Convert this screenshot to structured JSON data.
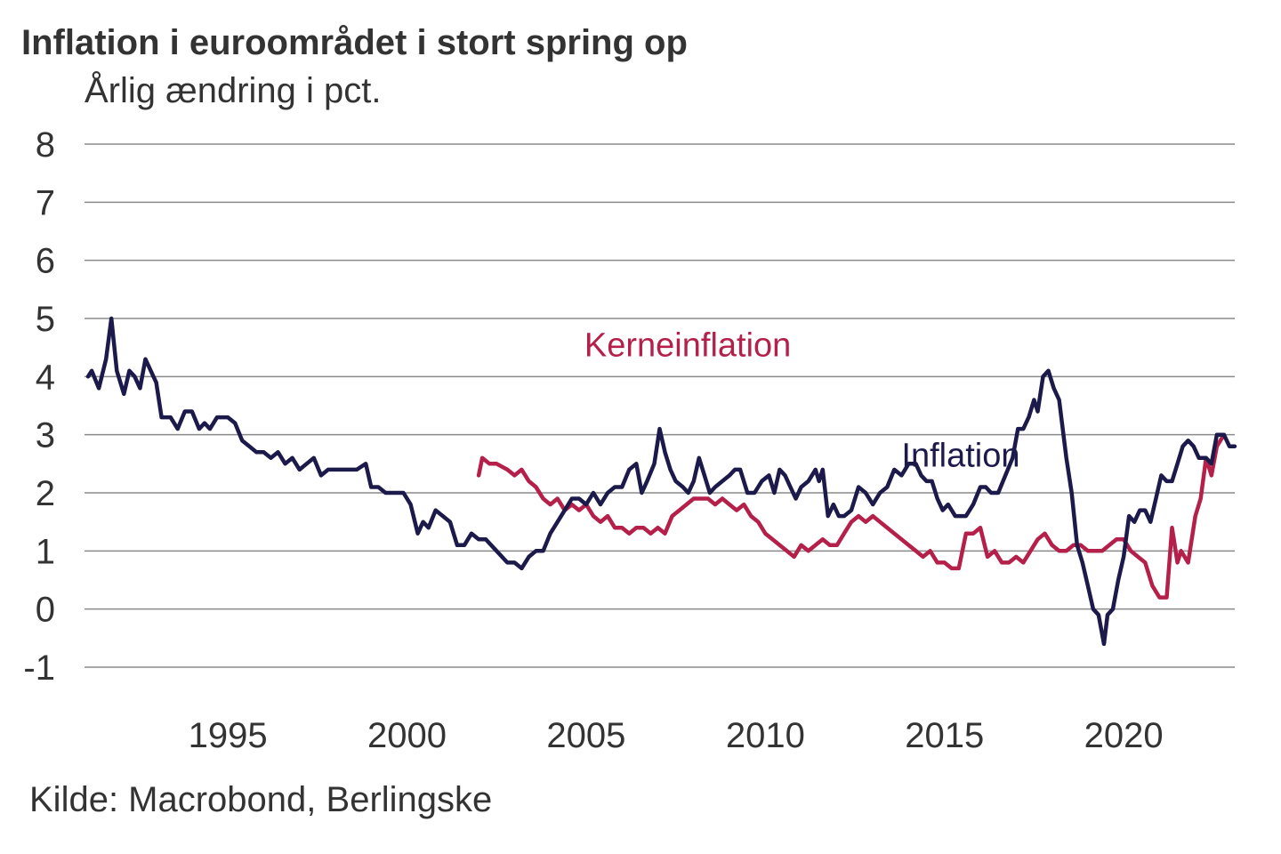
{
  "header": {
    "title": "Inflation i euroområdet i stort spring op",
    "subtitle": "Årlig ændring i pct."
  },
  "footer": {
    "source": "Kilde: Macrobond, Berlingske"
  },
  "colors": {
    "inflation": "#1c1a4a",
    "core": "#b5204a",
    "grid": "#8a8a8a",
    "text": "#333333"
  },
  "chart_data": {
    "type": "line",
    "title": "Inflation i euroområdet i stort spring op",
    "subtitle": "Årlig ændring i pct.",
    "xlabel": "",
    "ylabel": "",
    "xlim": [
      1991.0,
      2023.1
    ],
    "ylim": [
      -1,
      8
    ],
    "x_ticks": [
      "1995",
      "2000",
      "2005",
      "2010",
      "2015",
      "2020"
    ],
    "x_tick_values": [
      1995,
      2000,
      2005,
      2010,
      2015,
      2020
    ],
    "y_ticks": [
      "-1",
      "0",
      "1",
      "2",
      "3",
      "4",
      "5",
      "6",
      "7",
      "8"
    ],
    "y_tick_values": [
      -1,
      0,
      1,
      2,
      3,
      4,
      5,
      6,
      7,
      8
    ],
    "grid": true,
    "source": "Kilde: Macrobond, Berlingske",
    "series": [
      {
        "name": "Inflation",
        "label_text": "Inflation",
        "label_at": [
          2013.8,
          2.45
        ],
        "color": "#1c1a4a",
        "points": [
          [
            1991.1,
            4.0
          ],
          [
            1991.2,
            4.1
          ],
          [
            1991.4,
            3.8
          ],
          [
            1991.6,
            4.3
          ],
          [
            1991.75,
            5.0
          ],
          [
            1991.9,
            4.1
          ],
          [
            1992.1,
            3.7
          ],
          [
            1992.25,
            4.1
          ],
          [
            1992.4,
            4.0
          ],
          [
            1992.55,
            3.8
          ],
          [
            1992.7,
            4.3
          ],
          [
            1992.85,
            4.1
          ],
          [
            1993.0,
            3.9
          ],
          [
            1993.15,
            3.3
          ],
          [
            1993.4,
            3.3
          ],
          [
            1993.6,
            3.1
          ],
          [
            1993.8,
            3.4
          ],
          [
            1994.0,
            3.4
          ],
          [
            1994.2,
            3.1
          ],
          [
            1994.35,
            3.2
          ],
          [
            1994.5,
            3.1
          ],
          [
            1994.7,
            3.3
          ],
          [
            1995.0,
            3.3
          ],
          [
            1995.2,
            3.2
          ],
          [
            1995.4,
            2.9
          ],
          [
            1995.6,
            2.8
          ],
          [
            1995.8,
            2.7
          ],
          [
            1996.0,
            2.7
          ],
          [
            1996.2,
            2.6
          ],
          [
            1996.4,
            2.7
          ],
          [
            1996.6,
            2.5
          ],
          [
            1996.8,
            2.6
          ],
          [
            1997.0,
            2.4
          ],
          [
            1997.2,
            2.5
          ],
          [
            1997.4,
            2.6
          ],
          [
            1997.6,
            2.3
          ],
          [
            1997.8,
            2.4
          ],
          [
            1998.0,
            2.4
          ],
          [
            1998.3,
            2.4
          ],
          [
            1998.6,
            2.4
          ],
          [
            1998.85,
            2.5
          ],
          [
            1999.0,
            2.1
          ],
          [
            1999.2,
            2.1
          ],
          [
            1999.4,
            2.0
          ],
          [
            1999.7,
            2.0
          ],
          [
            1999.9,
            2.0
          ],
          [
            2000.1,
            1.8
          ],
          [
            2000.3,
            1.3
          ],
          [
            2000.45,
            1.5
          ],
          [
            2000.6,
            1.4
          ],
          [
            2000.8,
            1.7
          ],
          [
            2001.0,
            1.6
          ],
          [
            2001.2,
            1.5
          ],
          [
            2001.4,
            1.1
          ],
          [
            2001.6,
            1.1
          ],
          [
            2001.8,
            1.3
          ],
          [
            2002.0,
            1.2
          ],
          [
            2002.2,
            1.2
          ],
          [
            2002.5,
            1.0
          ],
          [
            2002.8,
            0.8
          ],
          [
            2003.0,
            0.8
          ],
          [
            2003.2,
            0.7
          ],
          [
            2003.4,
            0.9
          ],
          [
            2003.6,
            1.0
          ],
          [
            2003.8,
            1.0
          ],
          [
            2004.0,
            1.3
          ],
          [
            2004.2,
            1.5
          ],
          [
            2004.4,
            1.7
          ],
          [
            2004.6,
            1.9
          ],
          [
            2004.8,
            1.9
          ],
          [
            2005.0,
            1.8
          ],
          [
            2005.2,
            2.0
          ],
          [
            2005.4,
            1.8
          ],
          [
            2005.6,
            2.0
          ],
          [
            2005.8,
            2.1
          ],
          [
            2006.0,
            2.1
          ],
          [
            2006.2,
            2.4
          ],
          [
            2006.4,
            2.5
          ],
          [
            2006.55,
            2.0
          ],
          [
            2006.7,
            2.2
          ],
          [
            2006.9,
            2.5
          ],
          [
            2007.05,
            3.1
          ],
          [
            2007.2,
            2.7
          ],
          [
            2007.35,
            2.4
          ],
          [
            2007.5,
            2.2
          ],
          [
            2007.7,
            2.1
          ],
          [
            2007.85,
            2.0
          ],
          [
            2008.0,
            2.2
          ],
          [
            2008.15,
            2.6
          ],
          [
            2008.3,
            2.3
          ],
          [
            2008.45,
            2.0
          ],
          [
            2008.6,
            2.1
          ],
          [
            2008.8,
            2.2
          ],
          [
            2009.0,
            2.3
          ],
          [
            2009.15,
            2.4
          ],
          [
            2009.3,
            2.4
          ],
          [
            2009.5,
            2.0
          ],
          [
            2009.7,
            2.0
          ],
          [
            2009.9,
            2.2
          ],
          [
            2010.1,
            2.3
          ],
          [
            2010.25,
            2.0
          ],
          [
            2010.4,
            2.4
          ],
          [
            2010.55,
            2.3
          ],
          [
            2010.7,
            2.1
          ],
          [
            2010.85,
            1.9
          ],
          [
            2011.0,
            2.1
          ],
          [
            2011.2,
            2.2
          ],
          [
            2011.4,
            2.4
          ],
          [
            2011.5,
            2.2
          ],
          [
            2011.6,
            2.4
          ],
          [
            2011.75,
            1.6
          ],
          [
            2011.9,
            1.8
          ],
          [
            2012.05,
            1.6
          ],
          [
            2012.2,
            1.6
          ],
          [
            2012.4,
            1.7
          ],
          [
            2012.6,
            2.1
          ],
          [
            2012.8,
            2.0
          ],
          [
            2013.0,
            1.8
          ],
          [
            2013.2,
            2.0
          ],
          [
            2013.4,
            2.1
          ],
          [
            2013.6,
            2.4
          ],
          [
            2013.8,
            2.3
          ],
          [
            2014.0,
            2.5
          ],
          [
            2014.2,
            2.5
          ],
          [
            2014.35,
            2.3
          ],
          [
            2014.5,
            2.2
          ],
          [
            2014.65,
            2.2
          ],
          [
            2014.8,
            1.9
          ],
          [
            2014.95,
            1.7
          ],
          [
            2015.1,
            1.8
          ],
          [
            2015.3,
            1.6
          ],
          [
            2015.45,
            1.6
          ],
          [
            2015.6,
            1.6
          ],
          [
            2015.8,
            1.8
          ],
          [
            2016.0,
            2.1
          ],
          [
            2016.15,
            2.1
          ],
          [
            2016.3,
            2.0
          ],
          [
            2016.5,
            2.0
          ],
          [
            2016.7,
            2.3
          ],
          [
            2016.9,
            2.6
          ],
          [
            2017.05,
            3.1
          ],
          [
            2017.2,
            3.1
          ],
          [
            2017.35,
            3.3
          ],
          [
            2017.5,
            3.6
          ],
          [
            2017.6,
            3.4
          ],
          [
            2017.75,
            4.0
          ],
          [
            2017.9,
            4.1
          ],
          [
            2018.05,
            3.8
          ],
          [
            2018.2,
            3.6
          ],
          [
            2018.4,
            2.6
          ],
          [
            2018.55,
            2.0
          ],
          [
            2018.7,
            1.1
          ],
          [
            2018.85,
            0.8
          ],
          [
            2019.0,
            0.4
          ],
          [
            2019.15,
            0.0
          ],
          [
            2019.3,
            -0.1
          ],
          [
            2019.45,
            -0.6
          ],
          [
            2019.55,
            -0.1
          ],
          [
            2019.7,
            0.0
          ],
          [
            2019.85,
            0.5
          ],
          [
            2020.0,
            0.9
          ],
          [
            2020.15,
            1.6
          ],
          [
            2020.3,
            1.5
          ],
          [
            2020.45,
            1.7
          ],
          [
            2020.6,
            1.7
          ],
          [
            2020.75,
            1.5
          ],
          [
            2020.9,
            1.9
          ],
          [
            2021.05,
            2.3
          ],
          [
            2021.2,
            2.2
          ],
          [
            2021.35,
            2.2
          ],
          [
            2021.5,
            2.5
          ],
          [
            2021.65,
            2.8
          ],
          [
            2021.8,
            2.9
          ],
          [
            2021.95,
            2.8
          ],
          [
            2022.1,
            2.6
          ],
          [
            2022.3,
            2.6
          ],
          [
            2022.45,
            2.5
          ],
          [
            2022.6,
            3.0
          ],
          [
            2022.8,
            3.0
          ],
          [
            2022.95,
            2.8
          ],
          [
            2023.1,
            2.8
          ]
        ]
      },
      {
        "name": "Kerneinflation",
        "label_text": "Kerneinflation",
        "label_at": [
          2004.95,
          4.35
        ],
        "color": "#b5204a",
        "points": [
          [
            2002.0,
            2.3
          ],
          [
            2002.1,
            2.6
          ],
          [
            2002.3,
            2.5
          ],
          [
            2002.5,
            2.5
          ],
          [
            2002.8,
            2.4
          ],
          [
            2003.0,
            2.3
          ],
          [
            2003.2,
            2.4
          ],
          [
            2003.4,
            2.2
          ],
          [
            2003.6,
            2.1
          ],
          [
            2003.8,
            1.9
          ],
          [
            2004.0,
            1.8
          ],
          [
            2004.2,
            1.9
          ],
          [
            2004.4,
            1.7
          ],
          [
            2004.6,
            1.8
          ],
          [
            2004.8,
            1.7
          ],
          [
            2005.0,
            1.8
          ],
          [
            2005.2,
            1.6
          ],
          [
            2005.4,
            1.5
          ],
          [
            2005.6,
            1.6
          ],
          [
            2005.8,
            1.4
          ],
          [
            2006.0,
            1.4
          ],
          [
            2006.2,
            1.3
          ],
          [
            2006.4,
            1.4
          ],
          [
            2006.6,
            1.4
          ],
          [
            2006.8,
            1.3
          ],
          [
            2007.0,
            1.4
          ],
          [
            2007.2,
            1.3
          ],
          [
            2007.4,
            1.6
          ],
          [
            2007.6,
            1.7
          ],
          [
            2007.8,
            1.8
          ],
          [
            2008.0,
            1.9
          ],
          [
            2008.2,
            1.9
          ],
          [
            2008.4,
            1.9
          ],
          [
            2008.6,
            1.8
          ],
          [
            2008.8,
            1.9
          ],
          [
            2009.0,
            1.8
          ],
          [
            2009.2,
            1.7
          ],
          [
            2009.4,
            1.8
          ],
          [
            2009.6,
            1.6
          ],
          [
            2009.8,
            1.5
          ],
          [
            2010.0,
            1.3
          ],
          [
            2010.2,
            1.2
          ],
          [
            2010.4,
            1.1
          ],
          [
            2010.6,
            1.0
          ],
          [
            2010.8,
            0.9
          ],
          [
            2011.0,
            1.1
          ],
          [
            2011.2,
            1.0
          ],
          [
            2011.4,
            1.1
          ],
          [
            2011.6,
            1.2
          ],
          [
            2011.8,
            1.1
          ],
          [
            2012.0,
            1.1
          ],
          [
            2012.2,
            1.3
          ],
          [
            2012.4,
            1.5
          ],
          [
            2012.6,
            1.6
          ],
          [
            2012.8,
            1.5
          ],
          [
            2013.0,
            1.6
          ],
          [
            2013.2,
            1.5
          ],
          [
            2013.4,
            1.4
          ],
          [
            2013.6,
            1.3
          ],
          [
            2013.8,
            1.2
          ],
          [
            2014.0,
            1.1
          ],
          [
            2014.2,
            1.0
          ],
          [
            2014.4,
            0.9
          ],
          [
            2014.6,
            1.0
          ],
          [
            2014.8,
            0.8
          ],
          [
            2015.0,
            0.8
          ],
          [
            2015.2,
            0.7
          ],
          [
            2015.4,
            0.7
          ],
          [
            2015.6,
            1.3
          ],
          [
            2015.8,
            1.3
          ],
          [
            2016.0,
            1.4
          ],
          [
            2016.2,
            0.9
          ],
          [
            2016.4,
            1.0
          ],
          [
            2016.6,
            0.8
          ],
          [
            2016.8,
            0.8
          ],
          [
            2017.0,
            0.9
          ],
          [
            2017.2,
            0.8
          ],
          [
            2017.4,
            1.0
          ],
          [
            2017.6,
            1.2
          ],
          [
            2017.8,
            1.3
          ],
          [
            2018.0,
            1.1
          ],
          [
            2018.2,
            1.0
          ],
          [
            2018.4,
            1.0
          ],
          [
            2018.6,
            1.1
          ],
          [
            2018.8,
            1.1
          ],
          [
            2019.0,
            1.0
          ],
          [
            2019.2,
            1.0
          ],
          [
            2019.4,
            1.0
          ],
          [
            2019.6,
            1.1
          ],
          [
            2019.8,
            1.2
          ],
          [
            2020.0,
            1.2
          ],
          [
            2020.2,
            1.0
          ],
          [
            2020.4,
            0.9
          ],
          [
            2020.6,
            0.8
          ],
          [
            2020.8,
            0.4
          ],
          [
            2021.0,
            0.2
          ],
          [
            2021.2,
            0.2
          ],
          [
            2021.35,
            1.4
          ],
          [
            2021.5,
            0.8
          ],
          [
            2021.6,
            1.0
          ],
          [
            2021.8,
            0.8
          ],
          [
            2022.0,
            1.6
          ],
          [
            2022.15,
            1.9
          ],
          [
            2022.3,
            2.6
          ],
          [
            2022.45,
            2.3
          ],
          [
            2022.6,
            2.8
          ],
          [
            2022.8,
            3.0
          ]
        ]
      }
    ]
  }
}
